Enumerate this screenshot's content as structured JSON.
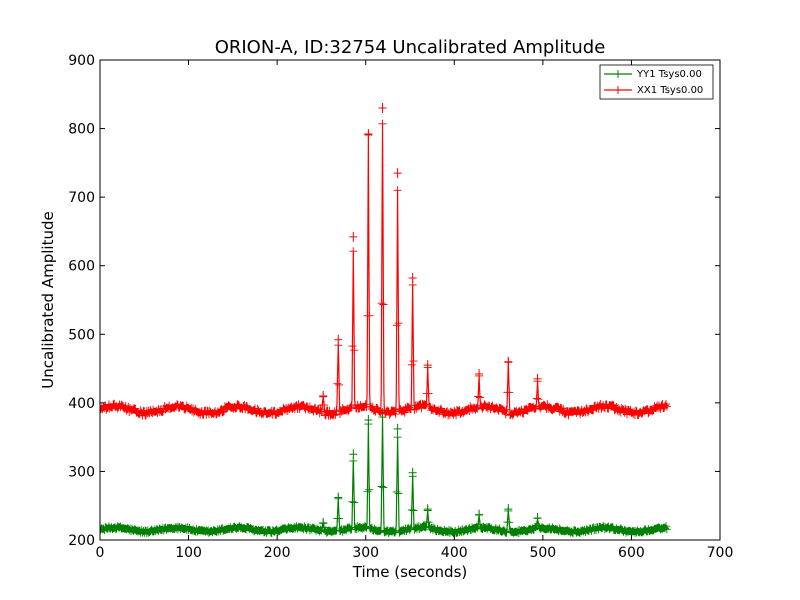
{
  "chart_data": {
    "type": "line",
    "title": "ORION-A, ID:32754 Uncalibrated Amplitude",
    "xlabel": "Time (seconds)",
    "ylabel": "Uncalibrated Amplitude",
    "xlim": [
      0,
      700
    ],
    "ylim": [
      200,
      900
    ],
    "xticks": [
      0,
      100,
      200,
      300,
      400,
      500,
      600,
      700
    ],
    "yticks": [
      200,
      300,
      400,
      500,
      600,
      700,
      800,
      900
    ],
    "grid": false,
    "legend_position": "top-right",
    "x_range_data": [
      0,
      640
    ],
    "series": [
      {
        "name": "YY1 Tsys0.00",
        "color": "#008000",
        "marker": "+",
        "baseline": 215,
        "baseline_wobble": 3,
        "spikes": [
          {
            "x": 252,
            "y": 225
          },
          {
            "x": 269,
            "y": 262
          },
          {
            "x": 286,
            "y": 325
          },
          {
            "x": 303,
            "y": 375
          },
          {
            "x": 319,
            "y": 385
          },
          {
            "x": 336,
            "y": 362
          },
          {
            "x": 353,
            "y": 298
          },
          {
            "x": 370,
            "y": 245
          },
          {
            "x": 428,
            "y": 237
          },
          {
            "x": 461,
            "y": 245
          },
          {
            "x": 494,
            "y": 232
          }
        ]
      },
      {
        "name": "XX1 Tsys0.00",
        "color": "#ff0000",
        "marker": "+",
        "baseline": 390,
        "baseline_wobble": 5,
        "spikes": [
          {
            "x": 252,
            "y": 410
          },
          {
            "x": 269,
            "y": 492
          },
          {
            "x": 286,
            "y": 642
          },
          {
            "x": 303,
            "y": 792
          },
          {
            "x": 319,
            "y": 830
          },
          {
            "x": 336,
            "y": 735
          },
          {
            "x": 353,
            "y": 582
          },
          {
            "x": 370,
            "y": 455
          },
          {
            "x": 428,
            "y": 442
          },
          {
            "x": 461,
            "y": 460
          },
          {
            "x": 494,
            "y": 435
          }
        ]
      }
    ]
  }
}
